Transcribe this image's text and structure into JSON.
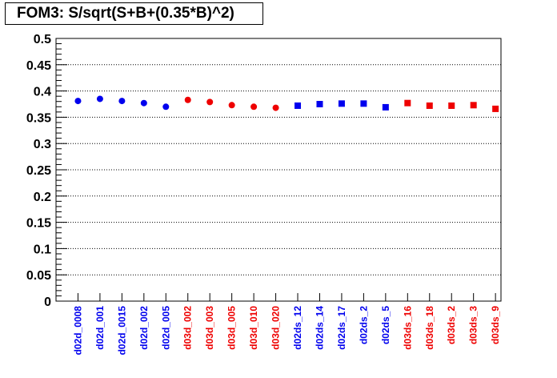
{
  "chart_data": {
    "type": "scatter",
    "title": "FOM3: S/sqrt(S+B+(0.35*B)^2)",
    "ylim": [
      0,
      0.5
    ],
    "yticks": [
      "0",
      "0.05",
      "0.1",
      "0.15",
      "0.2",
      "0.25",
      "0.3",
      "0.35",
      "0.4",
      "0.45",
      "0.5"
    ],
    "grid": "horizontal dotted",
    "categories": [
      "d02d_0008",
      "d02d_001",
      "d02d_0015",
      "d02d_002",
      "d02d_005",
      "d03d_002",
      "d03d_003",
      "d03d_005",
      "d03d_010",
      "d03d_020",
      "d02ds_12",
      "d02ds_14",
      "d02ds_17",
      "d02ds_2",
      "d02ds_5",
      "d03ds_16",
      "d03ds_18",
      "d03ds_2",
      "d03ds_3",
      "d03ds_9"
    ],
    "series": [
      {
        "color": "#0000ee",
        "marker": "circle",
        "x": [
          "d02d_0008",
          "d02d_001",
          "d02d_0015",
          "d02d_002",
          "d02d_005"
        ],
        "values": [
          0.381,
          0.385,
          0.381,
          0.377,
          0.37
        ]
      },
      {
        "color": "#ee0000",
        "marker": "circle",
        "x": [
          "d03d_002",
          "d03d_003",
          "d03d_005",
          "d03d_010",
          "d03d_020"
        ],
        "values": [
          0.383,
          0.379,
          0.373,
          0.37,
          0.368
        ]
      },
      {
        "color": "#0000ee",
        "marker": "square",
        "x": [
          "d02ds_12",
          "d02ds_14",
          "d02ds_17",
          "d02ds_2",
          "d02ds_5"
        ],
        "values": [
          0.372,
          0.375,
          0.376,
          0.376,
          0.369
        ]
      },
      {
        "color": "#ee0000",
        "marker": "square",
        "x": [
          "d03ds_16",
          "d03ds_18",
          "d03ds_2",
          "d03ds_3",
          "d03ds_9"
        ],
        "values": [
          0.377,
          0.372,
          0.372,
          0.373,
          0.366
        ]
      }
    ]
  }
}
